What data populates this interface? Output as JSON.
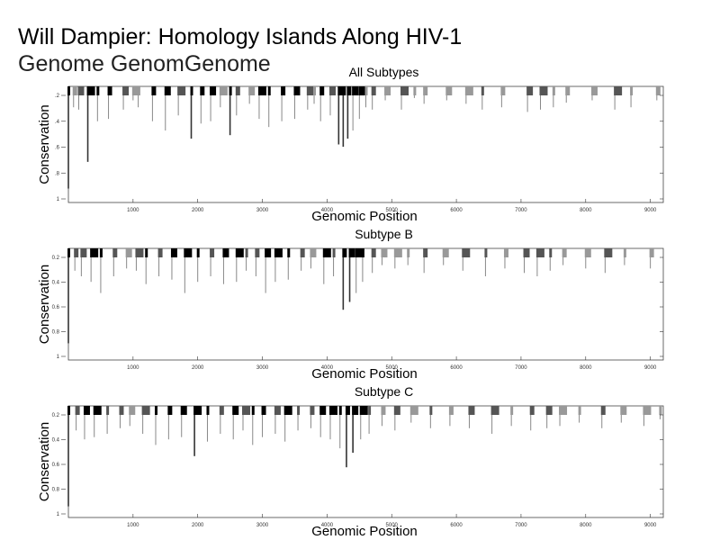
{
  "slide": {
    "title": "Will Dampier: Homology Islands Along HIV-1",
    "title_line2": "Genome GenomGenome"
  },
  "chart_data": [
    {
      "type": "bar",
      "title": "All Subtypes",
      "xlabel": "Genomic Position",
      "ylabel": "Conservation",
      "xlim": [
        0,
        9200
      ],
      "ylim": [
        0,
        1
      ],
      "yticks": [
        "1",
        ".8",
        ".6",
        ".4",
        ".2"
      ],
      "xticks": [
        1000,
        2000,
        3000,
        4000,
        5000,
        6000,
        7000,
        8000,
        9000
      ],
      "xticklabels": [
        "1000",
        "2000",
        "3000",
        "4000",
        "5000",
        "6000",
        "7000",
        "8000",
        "9000"
      ],
      "bars": [
        [
          0,
          0.12
        ],
        [
          80,
          0.82
        ],
        [
          160,
          0.8
        ],
        [
          300,
          0.35
        ],
        [
          450,
          0.7
        ],
        [
          620,
          0.72
        ],
        [
          850,
          0.8
        ],
        [
          1000,
          0.88
        ],
        [
          1080,
          0.82
        ],
        [
          1300,
          0.7
        ],
        [
          1500,
          0.62
        ],
        [
          1700,
          0.75
        ],
        [
          1900,
          0.55
        ],
        [
          2050,
          0.68
        ],
        [
          2200,
          0.7
        ],
        [
          2350,
          0.82
        ],
        [
          2500,
          0.58
        ],
        [
          2600,
          0.75
        ],
        [
          2800,
          0.85
        ],
        [
          2950,
          0.72
        ],
        [
          3100,
          0.65
        ],
        [
          3300,
          0.7
        ],
        [
          3500,
          0.72
        ],
        [
          3700,
          0.8
        ],
        [
          3800,
          0.85
        ],
        [
          3900,
          0.7
        ],
        [
          4050,
          0.75
        ],
        [
          4180,
          0.5
        ],
        [
          4250,
          0.48
        ],
        [
          4320,
          0.55
        ],
        [
          4400,
          0.62
        ],
        [
          4500,
          0.72
        ],
        [
          4600,
          0.82
        ],
        [
          4700,
          0.8
        ],
        [
          4900,
          0.88
        ],
        [
          5150,
          0.8
        ],
        [
          5350,
          0.9
        ],
        [
          5500,
          0.85
        ],
        [
          5850,
          0.88
        ],
        [
          6150,
          0.85
        ],
        [
          6400,
          0.8
        ],
        [
          6700,
          0.82
        ],
        [
          7100,
          0.78
        ],
        [
          7300,
          0.8
        ],
        [
          7500,
          0.82
        ],
        [
          7700,
          0.86
        ],
        [
          8100,
          0.88
        ],
        [
          8450,
          0.8
        ],
        [
          8700,
          0.82
        ],
        [
          9100,
          0.88
        ]
      ]
    },
    {
      "type": "bar",
      "title": "Subtype B",
      "xlabel": "Genomic Position",
      "ylabel": "Conservation",
      "xlim": [
        0,
        9200
      ],
      "ylim": [
        0,
        1
      ],
      "yticks": [
        "1",
        "0.8",
        "0.6",
        "0.4",
        "0.2"
      ],
      "xticks": [
        1000,
        2000,
        3000,
        4000,
        5000,
        6000,
        7000,
        8000,
        9000
      ],
      "xticklabels": [
        "1000",
        "2000",
        "3000",
        "4000",
        "5000",
        "6000",
        "7000",
        "8000",
        "9000"
      ],
      "bars": [
        [
          0,
          0.15
        ],
        [
          100,
          0.8
        ],
        [
          200,
          0.75
        ],
        [
          350,
          0.7
        ],
        [
          500,
          0.6
        ],
        [
          700,
          0.75
        ],
        [
          900,
          0.82
        ],
        [
          1050,
          0.8
        ],
        [
          1200,
          0.68
        ],
        [
          1400,
          0.75
        ],
        [
          1600,
          0.72
        ],
        [
          1800,
          0.6
        ],
        [
          2000,
          0.7
        ],
        [
          2200,
          0.75
        ],
        [
          2400,
          0.68
        ],
        [
          2600,
          0.7
        ],
        [
          2750,
          0.8
        ],
        [
          2900,
          0.75
        ],
        [
          3050,
          0.6
        ],
        [
          3200,
          0.7
        ],
        [
          3400,
          0.72
        ],
        [
          3600,
          0.8
        ],
        [
          3750,
          0.82
        ],
        [
          3950,
          0.68
        ],
        [
          4100,
          0.75
        ],
        [
          4250,
          0.45
        ],
        [
          4350,
          0.52
        ],
        [
          4450,
          0.6
        ],
        [
          4550,
          0.7
        ],
        [
          4700,
          0.78
        ],
        [
          4850,
          0.85
        ],
        [
          5050,
          0.82
        ],
        [
          5250,
          0.85
        ],
        [
          5500,
          0.78
        ],
        [
          5800,
          0.85
        ],
        [
          6100,
          0.8
        ],
        [
          6450,
          0.75
        ],
        [
          6750,
          0.82
        ],
        [
          7050,
          0.78
        ],
        [
          7250,
          0.75
        ],
        [
          7450,
          0.8
        ],
        [
          7650,
          0.85
        ],
        [
          8000,
          0.82
        ],
        [
          8300,
          0.78
        ],
        [
          8600,
          0.85
        ],
        [
          9000,
          0.82
        ]
      ]
    },
    {
      "type": "bar",
      "title": "Subtype C",
      "xlabel": "Genomic Position",
      "ylabel": "Conservation",
      "xlim": [
        0,
        9200
      ],
      "ylim": [
        0,
        1
      ],
      "yticks": [
        "1",
        "0.8",
        "0.6",
        "0.4",
        "0.2"
      ],
      "xticks": [
        1000,
        2000,
        3000,
        4000,
        5000,
        6000,
        7000,
        8000,
        9000
      ],
      "xticklabels": [
        "1000",
        "2000",
        "3000",
        "4000",
        "5000",
        "6000",
        "7000",
        "8000",
        "9000"
      ],
      "bars": [
        [
          0,
          0.1
        ],
        [
          120,
          0.78
        ],
        [
          250,
          0.7
        ],
        [
          400,
          0.72
        ],
        [
          600,
          0.75
        ],
        [
          800,
          0.8
        ],
        [
          950,
          0.82
        ],
        [
          1150,
          0.75
        ],
        [
          1350,
          0.65
        ],
        [
          1550,
          0.7
        ],
        [
          1750,
          0.72
        ],
        [
          1950,
          0.55
        ],
        [
          2150,
          0.68
        ],
        [
          2350,
          0.75
        ],
        [
          2550,
          0.7
        ],
        [
          2700,
          0.78
        ],
        [
          2850,
          0.65
        ],
        [
          3000,
          0.72
        ],
        [
          3200,
          0.75
        ],
        [
          3350,
          0.68
        ],
        [
          3550,
          0.78
        ],
        [
          3750,
          0.8
        ],
        [
          3900,
          0.72
        ],
        [
          4050,
          0.7
        ],
        [
          4200,
          0.62
        ],
        [
          4300,
          0.45
        ],
        [
          4400,
          0.58
        ],
        [
          4520,
          0.7
        ],
        [
          4650,
          0.75
        ],
        [
          4850,
          0.82
        ],
        [
          5050,
          0.78
        ],
        [
          5300,
          0.85
        ],
        [
          5600,
          0.8
        ],
        [
          5900,
          0.82
        ],
        [
          6200,
          0.8
        ],
        [
          6550,
          0.75
        ],
        [
          6850,
          0.82
        ],
        [
          7150,
          0.78
        ],
        [
          7400,
          0.8
        ],
        [
          7600,
          0.82
        ],
        [
          7900,
          0.85
        ],
        [
          8250,
          0.8
        ],
        [
          8550,
          0.85
        ],
        [
          8900,
          0.82
        ],
        [
          9150,
          0.88
        ]
      ]
    }
  ]
}
